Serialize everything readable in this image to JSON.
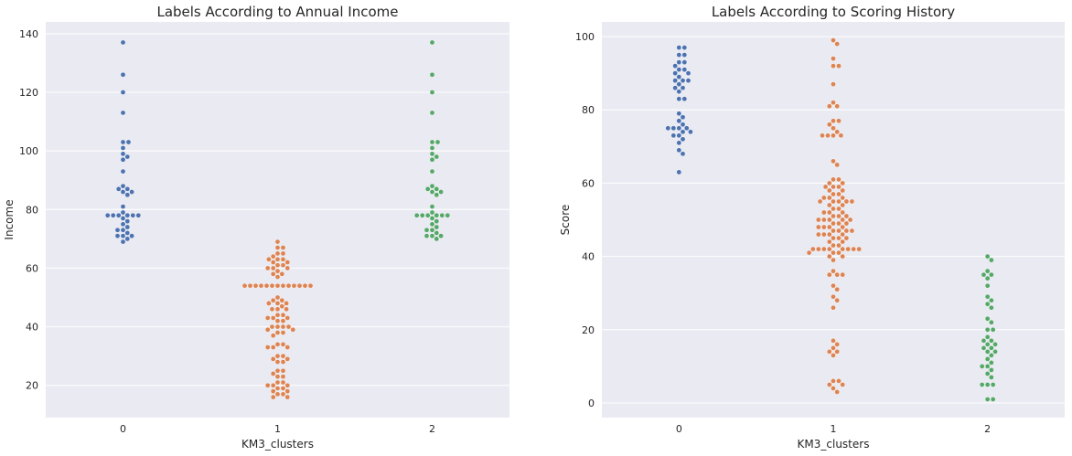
{
  "colors": {
    "plot_background": "#eaeaf2",
    "cluster_0": "#4c72b0",
    "cluster_1": "#dd8452",
    "cluster_2": "#55a868"
  },
  "chart_data": [
    {
      "type": "scatter",
      "title": "Labels According to Annual Income",
      "xlabel": "KM3_clusters",
      "ylabel": "Income",
      "categories": [
        "0",
        "1",
        "2"
      ],
      "ylim": [
        9,
        144
      ],
      "yticks": [
        20,
        40,
        60,
        80,
        100,
        120,
        140
      ],
      "grid": true,
      "series": [
        {
          "category": "0",
          "values": [
            137,
            126,
            120,
            113,
            103,
            103,
            101,
            99,
            98,
            97,
            93,
            88,
            87,
            87,
            86,
            86,
            85,
            81,
            79,
            78,
            78,
            78,
            78,
            78,
            78,
            77,
            76,
            75,
            74,
            73,
            73,
            72,
            71,
            71,
            71,
            70,
            69
          ]
        },
        {
          "category": "1",
          "values": [
            69,
            67,
            67,
            65,
            65,
            64,
            63,
            63,
            63,
            62,
            62,
            61,
            61,
            60,
            60,
            60,
            59,
            58,
            58,
            57,
            54,
            54,
            54,
            54,
            54,
            54,
            54,
            54,
            54,
            54,
            54,
            54,
            54,
            50,
            49,
            49,
            48,
            48,
            48,
            47,
            46,
            46,
            46,
            44,
            44,
            43,
            43,
            43,
            42,
            42,
            40,
            40,
            40,
            40,
            39,
            39,
            38,
            38,
            37,
            34,
            34,
            33,
            33,
            33,
            30,
            30,
            29,
            29,
            28,
            28,
            25,
            25,
            24,
            23,
            23,
            21,
            21,
            20,
            20,
            20,
            19,
            19,
            18,
            18,
            17,
            17,
            16,
            16
          ]
        },
        {
          "category": "2",
          "values": [
            137,
            126,
            120,
            113,
            103,
            103,
            101,
            99,
            98,
            97,
            93,
            88,
            87,
            87,
            86,
            86,
            85,
            81,
            79,
            78,
            78,
            78,
            78,
            78,
            78,
            77,
            76,
            75,
            74,
            73,
            73,
            72,
            71,
            71,
            71,
            70
          ]
        }
      ]
    },
    {
      "type": "scatter",
      "title": "Labels According to Scoring History",
      "xlabel": "KM3_clusters",
      "ylabel": "Score",
      "categories": [
        "0",
        "1",
        "2"
      ],
      "ylim": [
        -4,
        104
      ],
      "yticks": [
        0,
        20,
        40,
        60,
        80,
        100
      ],
      "grid": true,
      "series": [
        {
          "category": "0",
          "values": [
            97,
            97,
            95,
            95,
            93,
            93,
            92,
            91,
            91,
            90,
            90,
            89,
            88,
            88,
            88,
            87,
            86,
            86,
            85,
            83,
            83,
            79,
            78,
            77,
            76,
            75,
            75,
            75,
            75,
            74,
            74,
            73,
            73,
            72,
            71,
            69,
            68,
            63
          ]
        },
        {
          "category": "1",
          "values": [
            99,
            98,
            94,
            92,
            92,
            87,
            82,
            81,
            81,
            77,
            77,
            76,
            75,
            74,
            73,
            73,
            73,
            73,
            66,
            65,
            61,
            61,
            60,
            60,
            59,
            59,
            59,
            58,
            58,
            57,
            57,
            56,
            56,
            56,
            55,
            55,
            55,
            55,
            55,
            54,
            54,
            53,
            53,
            52,
            52,
            52,
            51,
            51,
            51,
            50,
            50,
            50,
            50,
            50,
            49,
            49,
            49,
            48,
            48,
            48,
            48,
            47,
            47,
            47,
            47,
            46,
            46,
            46,
            46,
            45,
            45,
            45,
            44,
            44,
            43,
            43,
            42,
            42,
            42,
            42,
            42,
            42,
            42,
            42,
            41,
            41,
            41,
            40,
            40,
            39,
            36,
            35,
            35,
            35,
            32,
            31,
            29,
            28,
            26,
            17,
            16,
            15,
            14,
            14,
            13,
            6,
            6,
            5,
            5,
            4,
            3
          ]
        },
        {
          "category": "2",
          "values": [
            40,
            39,
            36,
            35,
            35,
            34,
            32,
            29,
            28,
            27,
            26,
            23,
            22,
            20,
            20,
            18,
            17,
            17,
            16,
            16,
            15,
            15,
            14,
            14,
            13,
            12,
            11,
            10,
            10,
            9,
            8,
            7,
            5,
            5,
            5,
            1,
            1
          ]
        }
      ]
    }
  ]
}
